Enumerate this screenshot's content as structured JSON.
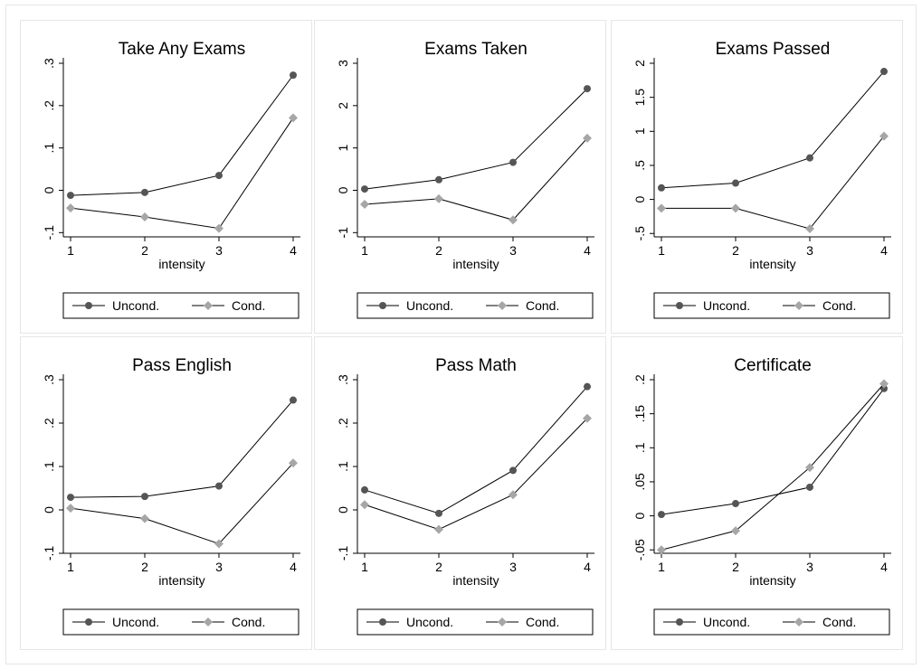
{
  "colors": {
    "uncond": "#555555",
    "cond": "#a6a6a6",
    "line": "#000000",
    "panel_border": "#e6e6e6"
  },
  "chart_data": [
    {
      "type": "line",
      "title": "Take Any Exams",
      "xlabel": "intensity",
      "x": [
        1,
        2,
        3,
        4
      ],
      "xticks": [
        "1",
        "2",
        "3",
        "4"
      ],
      "ylim": [
        -0.11,
        0.3
      ],
      "yticks": [
        -0.1,
        0,
        0.1,
        0.2,
        0.3
      ],
      "ytick_labels": [
        "-.1",
        "0",
        ".1",
        ".2",
        ".3"
      ],
      "series": [
        {
          "name": "Uncond.",
          "values": [
            -0.012,
            -0.005,
            0.035,
            0.272
          ]
        },
        {
          "name": "Cond.",
          "values": [
            -0.042,
            -0.063,
            -0.09,
            0.171
          ]
        }
      ],
      "legend": "bottom",
      "grid": false
    },
    {
      "type": "line",
      "title": "Exams Taken",
      "xlabel": "intensity",
      "x": [
        1,
        2,
        3,
        4
      ],
      "xticks": [
        "1",
        "2",
        "3",
        "4"
      ],
      "ylim": [
        -1.1,
        3.0
      ],
      "yticks": [
        -1,
        0,
        1,
        2,
        3
      ],
      "ytick_labels": [
        "-1",
        "0",
        "1",
        "2",
        "3"
      ],
      "series": [
        {
          "name": "Uncond.",
          "values": [
            0.03,
            0.25,
            0.66,
            2.4
          ]
        },
        {
          "name": "Cond.",
          "values": [
            -0.33,
            -0.2,
            -0.7,
            1.23
          ]
        }
      ],
      "legend": "bottom",
      "grid": false
    },
    {
      "type": "line",
      "title": "Exams Passed",
      "xlabel": "intensity",
      "x": [
        1,
        2,
        3,
        4
      ],
      "xticks": [
        "1",
        "2",
        "3",
        "4"
      ],
      "ylim": [
        -0.55,
        2.0
      ],
      "yticks": [
        -0.5,
        0,
        0.5,
        1,
        1.5,
        2
      ],
      "ytick_labels": [
        "-.5",
        "0",
        ".5",
        "1",
        "1.5",
        "2"
      ],
      "series": [
        {
          "name": "Uncond.",
          "values": [
            0.17,
            0.24,
            0.61,
            1.88
          ]
        },
        {
          "name": "Cond.",
          "values": [
            -0.13,
            -0.13,
            -0.43,
            0.93
          ]
        }
      ],
      "legend": "bottom",
      "grid": false
    },
    {
      "type": "line",
      "title": "Pass English",
      "xlabel": "intensity",
      "x": [
        1,
        2,
        3,
        4
      ],
      "xticks": [
        "1",
        "2",
        "3",
        "4"
      ],
      "ylim": [
        -0.1,
        0.3
      ],
      "yticks": [
        -0.1,
        0,
        0.1,
        0.2,
        0.3
      ],
      "ytick_labels": [
        "-.1",
        "0",
        ".1",
        ".2",
        ".3"
      ],
      "series": [
        {
          "name": "Uncond.",
          "values": [
            0.029,
            0.031,
            0.055,
            0.253
          ]
        },
        {
          "name": "Cond.",
          "values": [
            0.004,
            -0.02,
            -0.078,
            0.108
          ]
        }
      ],
      "legend": "bottom",
      "grid": false
    },
    {
      "type": "line",
      "title": "Pass Math",
      "xlabel": "intensity",
      "x": [
        1,
        2,
        3,
        4
      ],
      "xticks": [
        "1",
        "2",
        "3",
        "4"
      ],
      "ylim": [
        -0.1,
        0.3
      ],
      "yticks": [
        -0.1,
        0,
        0.1,
        0.2,
        0.3
      ],
      "ytick_labels": [
        "-.1",
        "0",
        ".1",
        ".2",
        ".3"
      ],
      "series": [
        {
          "name": "Uncond.",
          "values": [
            0.046,
            -0.008,
            0.091,
            0.284
          ]
        },
        {
          "name": "Cond.",
          "values": [
            0.012,
            -0.045,
            0.035,
            0.211
          ]
        }
      ],
      "legend": "bottom",
      "grid": false
    },
    {
      "type": "line",
      "title": "Certificate",
      "xlabel": "intensity",
      "x": [
        1,
        2,
        3,
        4
      ],
      "xticks": [
        "1",
        "2",
        "3",
        "4"
      ],
      "ylim": [
        -0.055,
        0.2
      ],
      "yticks": [
        -0.05,
        0,
        0.05,
        0.1,
        0.15,
        0.2
      ],
      "ytick_labels": [
        "-.05",
        "0",
        ".05",
        ".1",
        ".15",
        ".2"
      ],
      "series": [
        {
          "name": "Uncond.",
          "values": [
            0.002,
            0.018,
            0.042,
            0.187
          ]
        },
        {
          "name": "Cond.",
          "values": [
            -0.05,
            -0.022,
            0.071,
            0.194
          ]
        }
      ],
      "legend": "bottom",
      "grid": false
    }
  ]
}
